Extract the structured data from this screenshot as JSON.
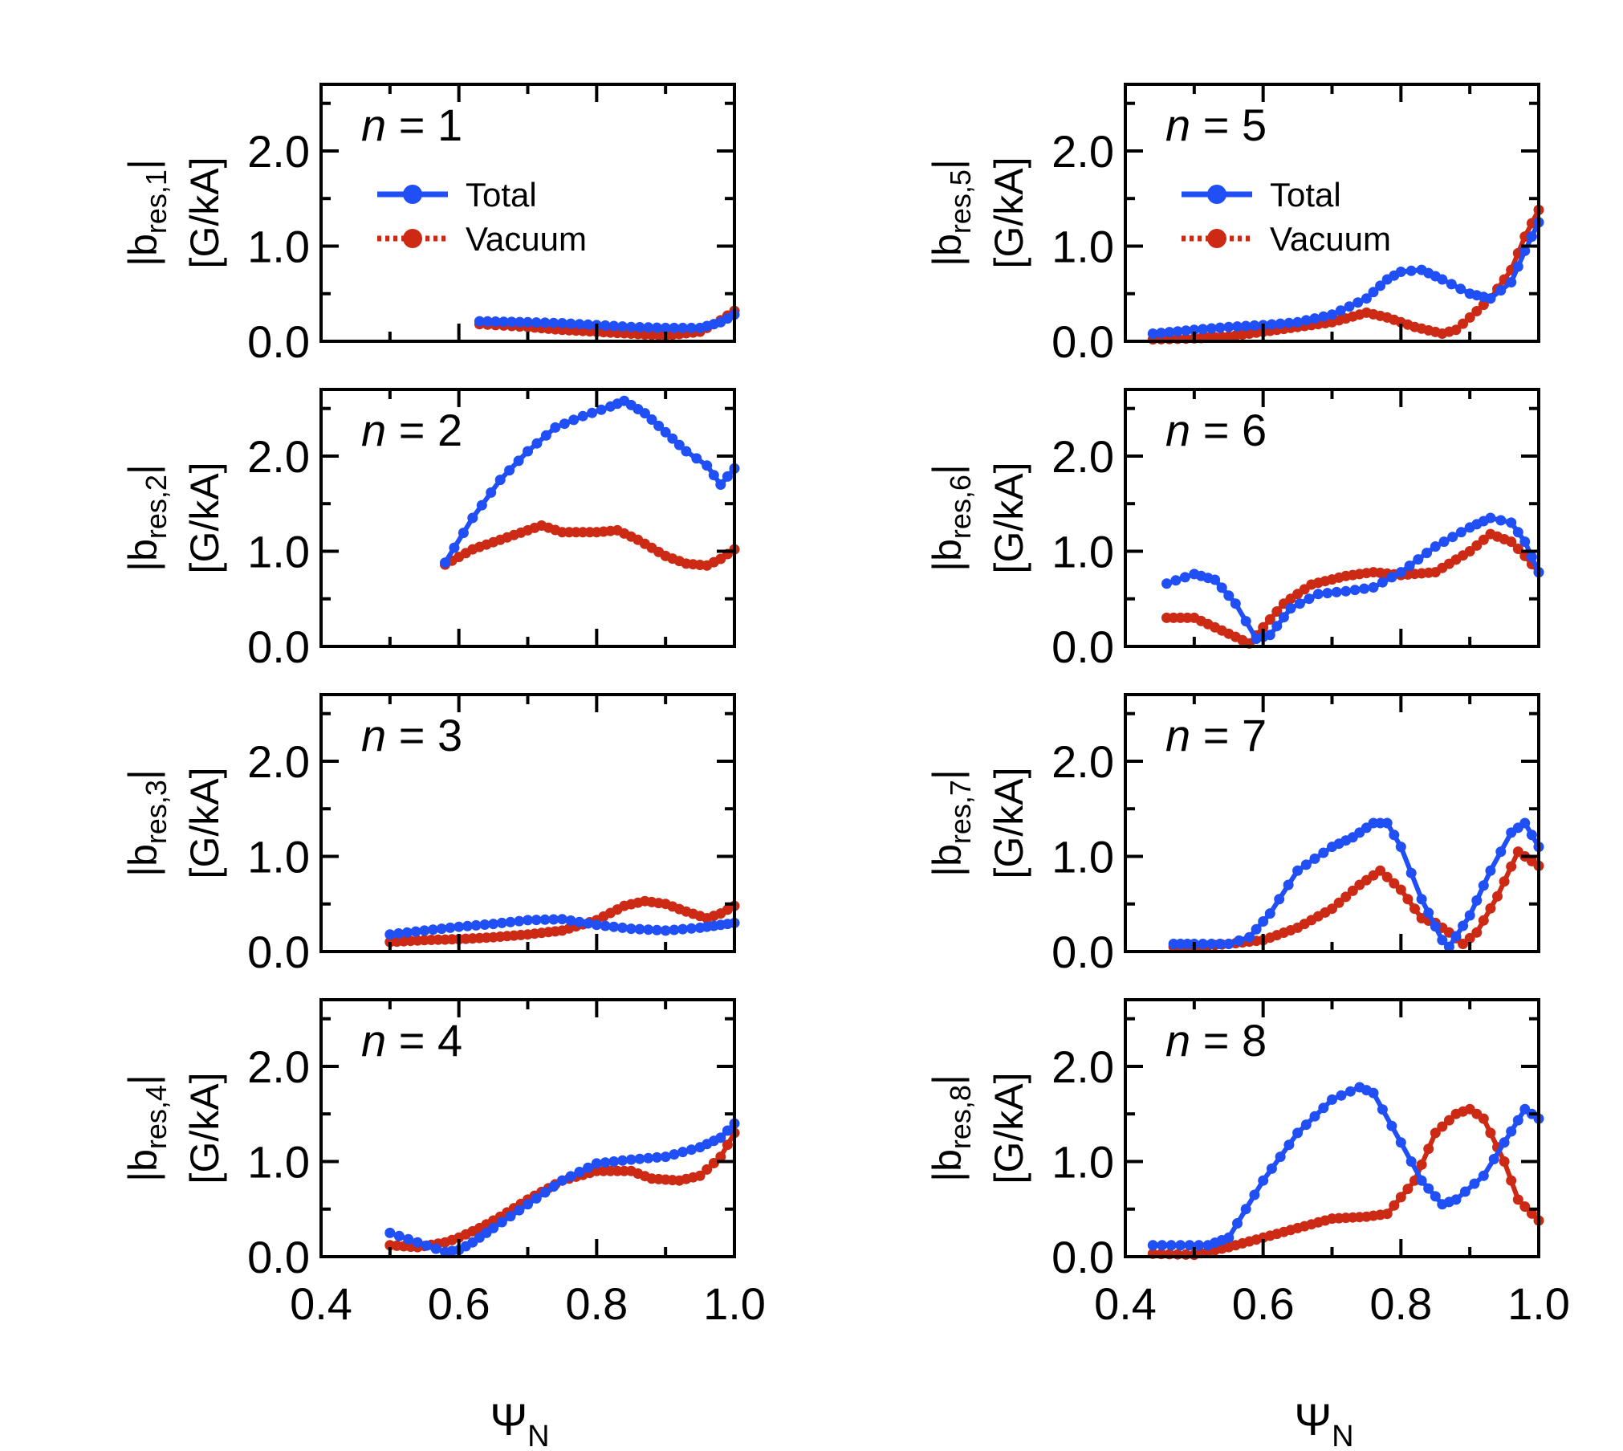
{
  "chart_data": {
    "type": "line",
    "colors": {
      "total": "#1f4ff5",
      "vacuum": "#cc2a14"
    },
    "legend": {
      "total": "Total",
      "vacuum": "Vacuum",
      "placement": "top-left"
    },
    "xlabel": {
      "main": "Ψ",
      "sub": "N"
    },
    "xlim": [
      0.4,
      1.0
    ],
    "ylim": [
      0,
      2.7
    ],
    "xticks": [
      "0.4",
      "0.6",
      "0.8",
      "1.0"
    ],
    "yticks": [
      "0.0",
      "1.0",
      "2.0"
    ],
    "panels": [
      {
        "n": "1",
        "label_pre": "n",
        "label_post": " = 1",
        "ylabel_a": "|b",
        "ylabel_sub": "res,1",
        "ylabel_b": "|",
        "ylabel_unit": "[G/kA]",
        "show_legend": true,
        "series": [
          {
            "name": "Total",
            "x": [
              0.63,
              0.7,
              0.75,
              0.8,
              0.85,
              0.9,
              0.95,
              0.98,
              1.0
            ],
            "y": [
              0.21,
              0.2,
              0.19,
              0.17,
              0.15,
              0.14,
              0.14,
              0.2,
              0.28
            ]
          },
          {
            "name": "Vacuum",
            "x": [
              0.63,
              0.7,
              0.75,
              0.8,
              0.85,
              0.9,
              0.95,
              0.98,
              1.0
            ],
            "y": [
              0.18,
              0.15,
              0.12,
              0.1,
              0.08,
              0.06,
              0.1,
              0.22,
              0.32
            ]
          }
        ]
      },
      {
        "n": "5",
        "label_pre": "n",
        "label_post": " = 5",
        "ylabel_a": "|b",
        "ylabel_sub": "res,5",
        "ylabel_b": "|",
        "ylabel_unit": "[G/kA]",
        "show_legend": true,
        "series": [
          {
            "name": "Total",
            "x": [
              0.44,
              0.5,
              0.55,
              0.6,
              0.65,
              0.7,
              0.75,
              0.78,
              0.8,
              0.83,
              0.86,
              0.9,
              0.93,
              0.96,
              0.98,
              1.0
            ],
            "y": [
              0.08,
              0.12,
              0.15,
              0.17,
              0.2,
              0.28,
              0.45,
              0.65,
              0.73,
              0.75,
              0.65,
              0.5,
              0.45,
              0.62,
              0.95,
              1.25
            ]
          },
          {
            "name": "Vacuum",
            "x": [
              0.44,
              0.5,
              0.55,
              0.6,
              0.65,
              0.7,
              0.75,
              0.78,
              0.82,
              0.86,
              0.88,
              0.9,
              0.93,
              0.96,
              0.98,
              1.0
            ],
            "y": [
              0.02,
              0.03,
              0.05,
              0.1,
              0.15,
              0.2,
              0.3,
              0.25,
              0.15,
              0.08,
              0.12,
              0.25,
              0.45,
              0.75,
              1.1,
              1.38
            ]
          }
        ]
      },
      {
        "n": "2",
        "label_pre": "n",
        "label_post": " = 2",
        "ylabel_a": "|b",
        "ylabel_sub": "res,2",
        "ylabel_b": "|",
        "ylabel_unit": "[G/kA]",
        "show_legend": false,
        "series": [
          {
            "name": "Total",
            "x": [
              0.58,
              0.62,
              0.66,
              0.7,
              0.74,
              0.78,
              0.82,
              0.84,
              0.87,
              0.9,
              0.93,
              0.96,
              0.98,
              1.0
            ],
            "y": [
              0.88,
              1.35,
              1.75,
              2.05,
              2.3,
              2.42,
              2.52,
              2.58,
              2.45,
              2.25,
              2.05,
              1.9,
              1.7,
              1.87
            ]
          },
          {
            "name": "Vacuum",
            "x": [
              0.58,
              0.62,
              0.66,
              0.7,
              0.72,
              0.75,
              0.8,
              0.83,
              0.86,
              0.9,
              0.93,
              0.96,
              0.98,
              1.0
            ],
            "y": [
              0.86,
              1.02,
              1.12,
              1.22,
              1.27,
              1.2,
              1.2,
              1.22,
              1.12,
              0.95,
              0.87,
              0.85,
              0.92,
              1.02
            ]
          }
        ]
      },
      {
        "n": "6",
        "label_pre": "n",
        "label_post": " = 6",
        "ylabel_a": "|b",
        "ylabel_sub": "res,6",
        "ylabel_b": "|",
        "ylabel_unit": "[G/kA]",
        "show_legend": false,
        "series": [
          {
            "name": "Total",
            "x": [
              0.46,
              0.5,
              0.53,
              0.56,
              0.59,
              0.61,
              0.64,
              0.68,
              0.72,
              0.76,
              0.8,
              0.85,
              0.9,
              0.93,
              0.96,
              0.98,
              1.0
            ],
            "y": [
              0.66,
              0.76,
              0.7,
              0.45,
              0.08,
              0.12,
              0.4,
              0.55,
              0.58,
              0.62,
              0.78,
              1.05,
              1.25,
              1.35,
              1.3,
              1.1,
              0.78
            ]
          },
          {
            "name": "Vacuum",
            "x": [
              0.46,
              0.5,
              0.53,
              0.56,
              0.58,
              0.6,
              0.63,
              0.67,
              0.72,
              0.76,
              0.8,
              0.85,
              0.9,
              0.93,
              0.96,
              0.98,
              1.0
            ],
            "y": [
              0.3,
              0.3,
              0.2,
              0.1,
              0.03,
              0.2,
              0.45,
              0.65,
              0.74,
              0.78,
              0.75,
              0.78,
              1.0,
              1.18,
              1.1,
              0.95,
              0.78
            ]
          }
        ]
      },
      {
        "n": "3",
        "label_pre": "n",
        "label_post": " = 3",
        "ylabel_a": "|b",
        "ylabel_sub": "res,3",
        "ylabel_b": "|",
        "ylabel_unit": "[G/kA]",
        "show_legend": false,
        "series": [
          {
            "name": "Total",
            "x": [
              0.5,
              0.55,
              0.6,
              0.65,
              0.7,
              0.75,
              0.8,
              0.85,
              0.9,
              0.95,
              0.98,
              1.0
            ],
            "y": [
              0.18,
              0.22,
              0.26,
              0.29,
              0.33,
              0.34,
              0.28,
              0.24,
              0.22,
              0.25,
              0.28,
              0.3
            ]
          },
          {
            "name": "Vacuum",
            "x": [
              0.5,
              0.55,
              0.6,
              0.65,
              0.7,
              0.75,
              0.8,
              0.84,
              0.87,
              0.9,
              0.93,
              0.96,
              0.98,
              1.0
            ],
            "y": [
              0.1,
              0.12,
              0.13,
              0.15,
              0.18,
              0.22,
              0.33,
              0.48,
              0.53,
              0.5,
              0.42,
              0.35,
              0.4,
              0.48
            ]
          }
        ]
      },
      {
        "n": "7",
        "label_pre": "n",
        "label_post": " = 7",
        "ylabel_a": "|b",
        "ylabel_sub": "res,7",
        "ylabel_b": "|",
        "ylabel_unit": "[G/kA]",
        "show_legend": false,
        "series": [
          {
            "name": "Total",
            "x": [
              0.47,
              0.5,
              0.55,
              0.58,
              0.61,
              0.65,
              0.7,
              0.73,
              0.76,
              0.78,
              0.8,
              0.83,
              0.86,
              0.87,
              0.9,
              0.93,
              0.96,
              0.98,
              1.0
            ],
            "y": [
              0.08,
              0.08,
              0.08,
              0.15,
              0.4,
              0.85,
              1.1,
              1.2,
              1.35,
              1.35,
              1.1,
              0.55,
              0.12,
              0.05,
              0.38,
              0.85,
              1.25,
              1.35,
              1.1
            ]
          },
          {
            "name": "Vacuum",
            "x": [
              0.47,
              0.5,
              0.55,
              0.6,
              0.65,
              0.7,
              0.74,
              0.77,
              0.8,
              0.83,
              0.85,
              0.87,
              0.89,
              0.91,
              0.94,
              0.97,
              1.0
            ],
            "y": [
              0.05,
              0.05,
              0.08,
              0.12,
              0.25,
              0.45,
              0.7,
              0.85,
              0.65,
              0.35,
              0.3,
              0.2,
              0.08,
              0.2,
              0.58,
              1.05,
              0.9
            ]
          }
        ]
      },
      {
        "n": "4",
        "label_pre": "n",
        "label_post": " = 4",
        "ylabel_a": "|b",
        "ylabel_sub": "res,4",
        "ylabel_b": "|",
        "ylabel_unit": "[G/kA]",
        "show_legend": false,
        "series": [
          {
            "name": "Total",
            "x": [
              0.5,
              0.54,
              0.58,
              0.6,
              0.62,
              0.65,
              0.7,
              0.75,
              0.8,
              0.85,
              0.9,
              0.95,
              0.98,
              1.0
            ],
            "y": [
              0.25,
              0.15,
              0.05,
              0.07,
              0.15,
              0.3,
              0.55,
              0.8,
              0.98,
              1.02,
              1.05,
              1.15,
              1.25,
              1.4
            ]
          },
          {
            "name": "Vacuum",
            "x": [
              0.5,
              0.54,
              0.58,
              0.6,
              0.63,
              0.66,
              0.7,
              0.75,
              0.8,
              0.85,
              0.88,
              0.92,
              0.95,
              0.98,
              1.0
            ],
            "y": [
              0.12,
              0.1,
              0.15,
              0.2,
              0.3,
              0.42,
              0.6,
              0.8,
              0.9,
              0.9,
              0.82,
              0.8,
              0.85,
              1.05,
              1.3
            ]
          }
        ]
      },
      {
        "n": "8",
        "label_pre": "n",
        "label_post": " = 8",
        "ylabel_a": "|b",
        "ylabel_sub": "res,8",
        "ylabel_b": "|",
        "ylabel_unit": "[G/kA]",
        "show_legend": false,
        "series": [
          {
            "name": "Total",
            "x": [
              0.44,
              0.48,
              0.52,
              0.55,
              0.6,
              0.65,
              0.7,
              0.74,
              0.76,
              0.8,
              0.83,
              0.86,
              0.88,
              0.92,
              0.95,
              0.98,
              1.0
            ],
            "y": [
              0.12,
              0.12,
              0.12,
              0.2,
              0.8,
              1.3,
              1.65,
              1.78,
              1.72,
              1.2,
              0.8,
              0.55,
              0.6,
              0.85,
              1.2,
              1.55,
              1.45
            ]
          },
          {
            "name": "Vacuum",
            "x": [
              0.44,
              0.5,
              0.55,
              0.6,
              0.65,
              0.7,
              0.75,
              0.78,
              0.82,
              0.85,
              0.88,
              0.9,
              0.92,
              0.95,
              0.97,
              1.0
            ],
            "y": [
              0.03,
              0.02,
              0.1,
              0.2,
              0.3,
              0.4,
              0.42,
              0.45,
              0.8,
              1.3,
              1.5,
              1.55,
              1.45,
              1.0,
              0.6,
              0.38
            ]
          }
        ]
      }
    ]
  }
}
